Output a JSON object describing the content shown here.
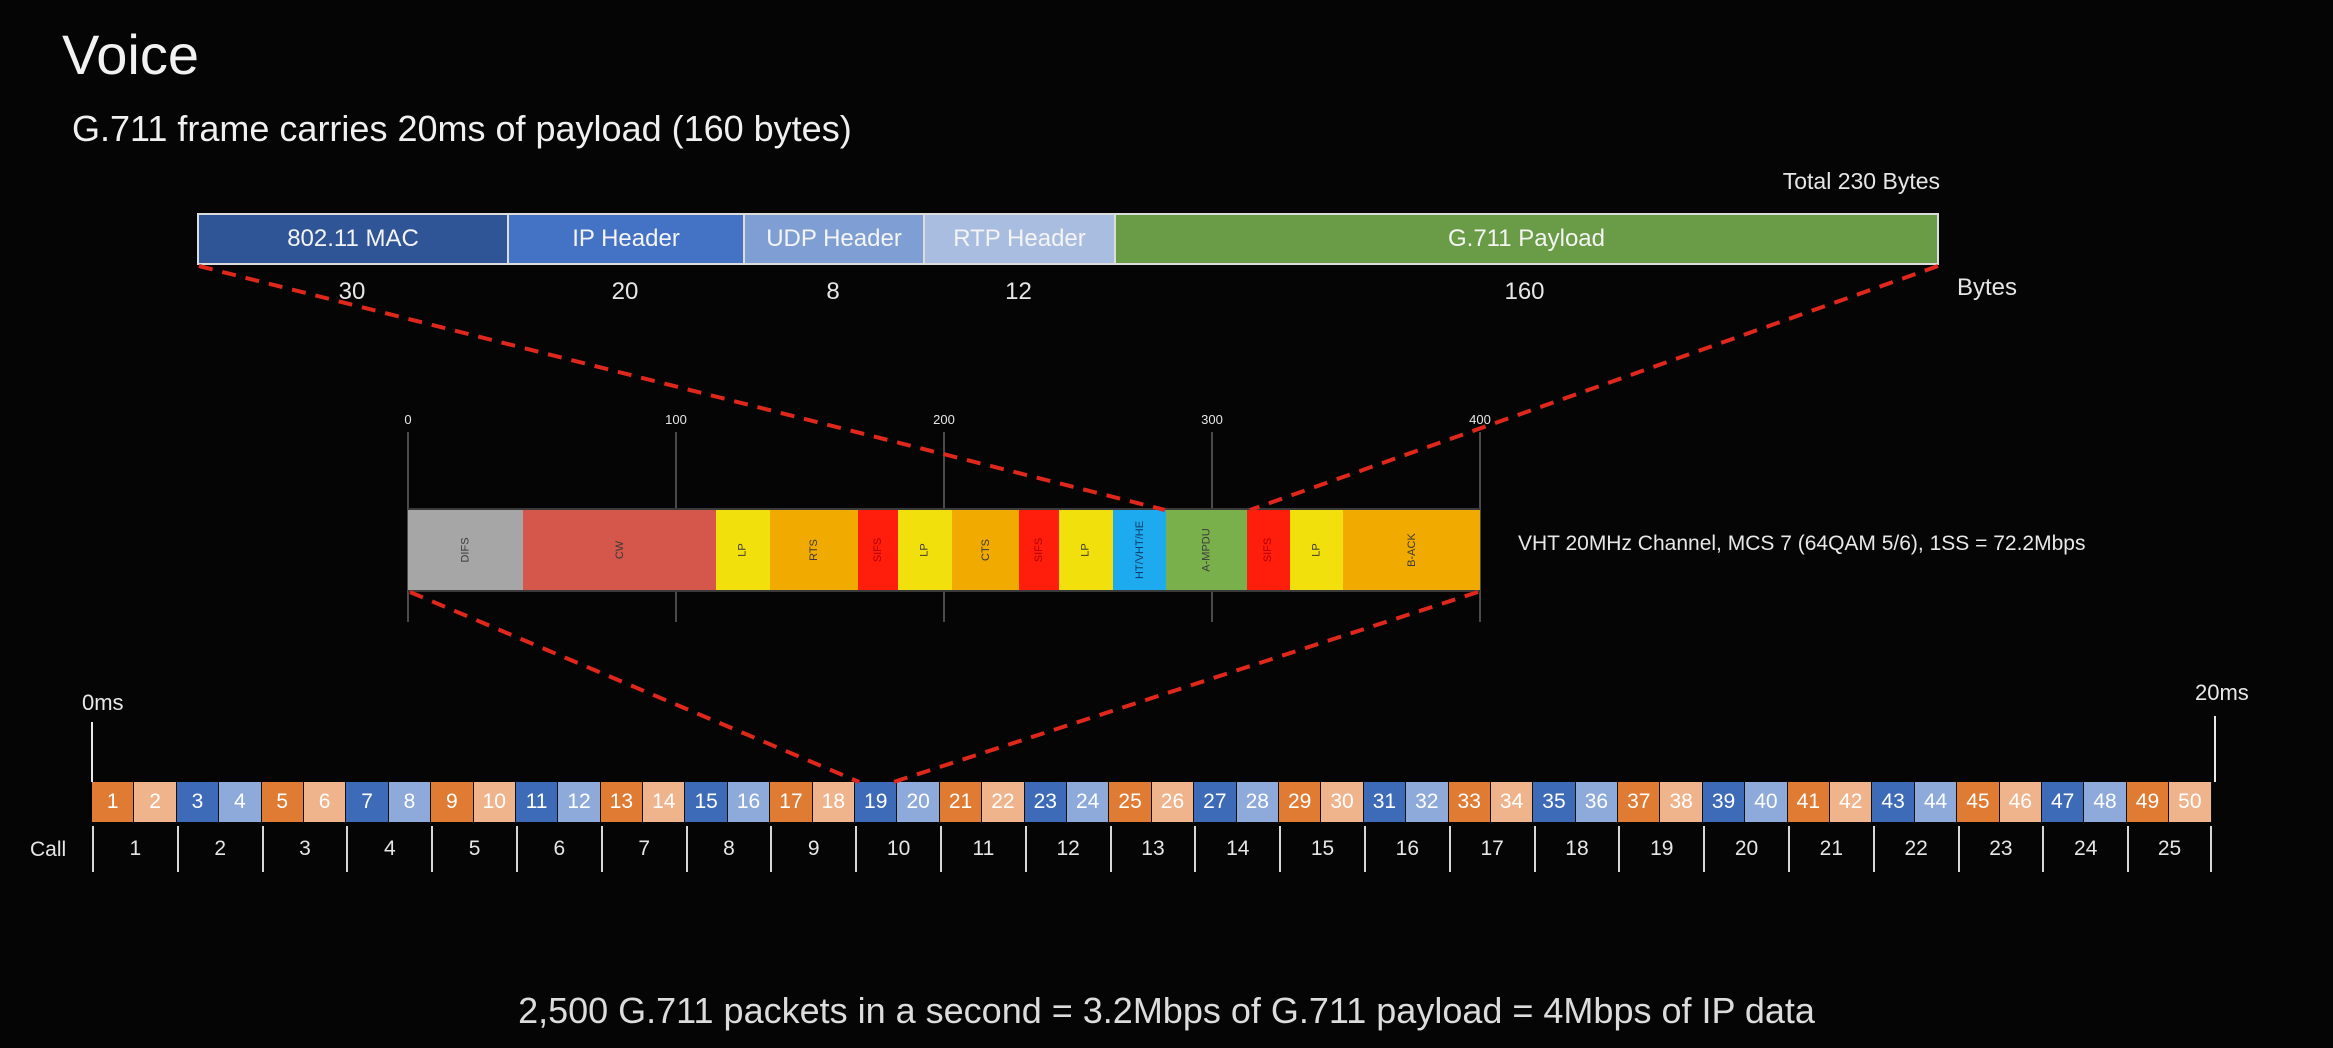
{
  "title": "Voice",
  "subtitle": "G.711 frame carries 20ms of payload (160 bytes)",
  "frame": {
    "total_label": "Total 230 Bytes",
    "unit_label": "Bytes",
    "segments": [
      {
        "label": "802.11 MAC",
        "bytes": "30",
        "color": "#2f5597"
      },
      {
        "label": "IP Header",
        "bytes": "20",
        "color": "#4472c4"
      },
      {
        "label": "UDP Header",
        "bytes": "8",
        "color": "#7f9fd4"
      },
      {
        "label": "RTP Header",
        "bytes": "12",
        "color": "#a9bde0"
      },
      {
        "label": "G.711 Payload",
        "bytes": "160",
        "color": "#6a9b46"
      }
    ]
  },
  "airtime": {
    "axis_ticks": [
      "0",
      "100",
      "200",
      "300",
      "400"
    ],
    "channel_label": "VHT 20MHz Channel, MCS 7 (64QAM 5/6), 1SS = 72.2Mbps",
    "blocks": [
      {
        "label": "DIFS",
        "start": 0,
        "end": 43,
        "color": "#a6a6a6"
      },
      {
        "label": "CW",
        "start": 43,
        "end": 115,
        "color": "#d5564a"
      },
      {
        "label": "LP",
        "start": 115,
        "end": 135,
        "color": "#f2e00c"
      },
      {
        "label": "RTS",
        "start": 135,
        "end": 168,
        "color": "#f0aa00"
      },
      {
        "label": "SIFS",
        "start": 168,
        "end": 183,
        "color": "#ff1e0c"
      },
      {
        "label": "LP",
        "start": 183,
        "end": 203,
        "color": "#f2e00c"
      },
      {
        "label": "CTS",
        "start": 203,
        "end": 228,
        "color": "#f0aa00"
      },
      {
        "label": "SIFS",
        "start": 228,
        "end": 243,
        "color": "#ff1e0c"
      },
      {
        "label": "LP",
        "start": 243,
        "end": 263,
        "color": "#f2e00c"
      },
      {
        "label": "HT/VHT/HE",
        "start": 263,
        "end": 283,
        "color": "#1eaaee"
      },
      {
        "label": "A-MPDU",
        "start": 283,
        "end": 313,
        "color": "#7ab04c"
      },
      {
        "label": "SIFS",
        "start": 313,
        "end": 329,
        "color": "#ff1e0c"
      },
      {
        "label": "LP",
        "start": 329,
        "end": 349,
        "color": "#f2e00c"
      },
      {
        "label": "B-ACK",
        "start": 349,
        "end": 400,
        "color": "#f0aa00"
      }
    ]
  },
  "timeline": {
    "start_label": "0ms",
    "end_label": "20ms",
    "call_word": "Call",
    "packet_count": 50,
    "call_count": 25,
    "highlight_packet": 19,
    "colors": {
      "odd_even_a": [
        "#e07b34",
        "#f0b48c"
      ],
      "odd_even_b": [
        "#3d6bb8",
        "#8eaadb"
      ]
    }
  },
  "summary": "2,500 G.711 packets in a second = 3.2Mbps of G.711 payload = 4Mbps of IP data"
}
